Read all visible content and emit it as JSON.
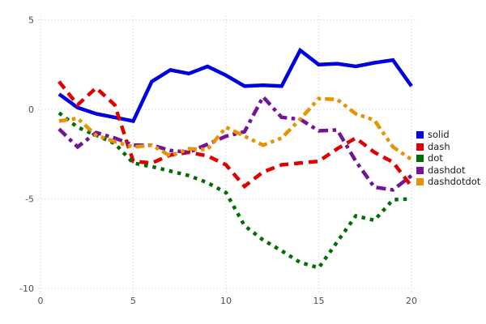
{
  "figure": {
    "background": "#ffffff",
    "grid_color": "#d8d8d8",
    "tick_label_color": "#4f4f4f",
    "legend_text_color": "#1a1a1a"
  },
  "chart_data": {
    "type": "line",
    "title": "",
    "xlabel": "",
    "ylabel": "",
    "xlim": [
      0,
      20
    ],
    "ylim": [
      -10,
      5
    ],
    "xticks": [
      0,
      5,
      10,
      15,
      20
    ],
    "yticks": [
      5,
      0,
      -5,
      -10
    ],
    "grid": true,
    "legend_position": "right",
    "x": [
      1,
      2,
      3,
      4,
      5,
      6,
      7,
      8,
      9,
      10,
      11,
      12,
      13,
      14,
      15,
      16,
      17,
      18,
      19,
      20
    ],
    "series": [
      {
        "name": "solid",
        "style": "solid",
        "color": "#0000e0",
        "values": [
          0.85,
          0.1,
          -0.25,
          -0.45,
          -0.65,
          1.55,
          2.2,
          2.0,
          2.4,
          1.9,
          1.3,
          1.35,
          1.3,
          3.3,
          2.5,
          2.55,
          2.4,
          2.6,
          2.75,
          1.3
        ]
      },
      {
        "name": "dash",
        "style": "dash",
        "color": "#e10000",
        "values": [
          1.55,
          0.25,
          1.2,
          0.25,
          -2.9,
          -3.0,
          -2.55,
          -2.4,
          -2.6,
          -3.1,
          -4.3,
          -3.5,
          -3.1,
          -3.0,
          -2.9,
          -2.2,
          -1.6,
          -2.4,
          -2.95,
          -4.3
        ]
      },
      {
        "name": "dot",
        "style": "dot",
        "color": "#006e00",
        "values": [
          -0.2,
          -1.0,
          -1.45,
          -1.9,
          -3.0,
          -3.2,
          -3.45,
          -3.7,
          -4.1,
          -4.65,
          -6.5,
          -7.3,
          -7.9,
          -8.55,
          -8.85,
          -7.4,
          -5.95,
          -6.2,
          -5.05,
          -5.0
        ]
      },
      {
        "name": "dashdot",
        "style": "dashdot",
        "color": "#721398",
        "values": [
          -1.1,
          -2.1,
          -1.3,
          -1.6,
          -2.0,
          -2.0,
          -2.3,
          -2.4,
          -1.95,
          -1.5,
          -1.25,
          0.7,
          -0.45,
          -0.55,
          -1.2,
          -1.15,
          -2.9,
          -4.35,
          -4.5,
          -3.7
        ]
      },
      {
        "name": "dashdotdot",
        "style": "dashdotdot",
        "color": "#e89206",
        "values": [
          -0.65,
          -0.5,
          -1.45,
          -1.8,
          -2.1,
          -2.0,
          -2.6,
          -2.2,
          -2.25,
          -1.0,
          -1.5,
          -2.0,
          -1.6,
          -0.55,
          0.6,
          0.55,
          -0.25,
          -0.6,
          -2.1,
          -2.8
        ]
      }
    ]
  }
}
